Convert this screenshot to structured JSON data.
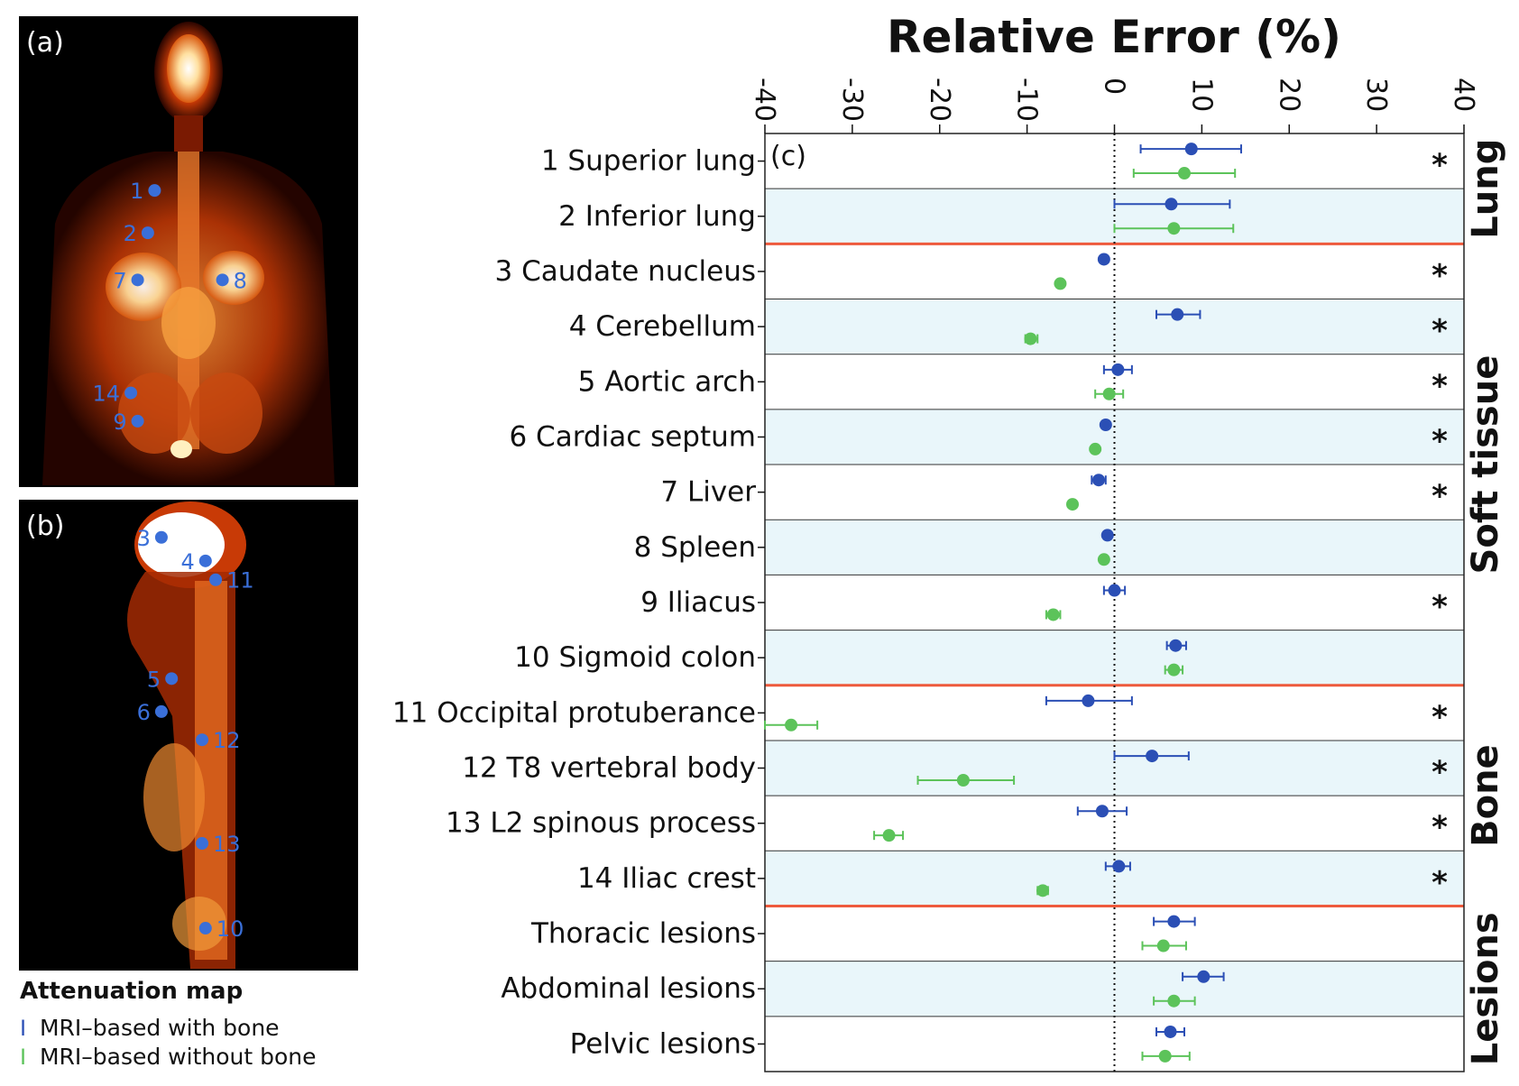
{
  "panels": {
    "a": {
      "label": "(a)",
      "markers": [
        {
          "label": "1",
          "x": 0.4,
          "y": 0.37,
          "side": "left"
        },
        {
          "label": "2",
          "x": 0.38,
          "y": 0.46,
          "side": "left"
        },
        {
          "label": "7",
          "x": 0.35,
          "y": 0.56,
          "side": "left"
        },
        {
          "label": "8",
          "x": 0.6,
          "y": 0.56,
          "side": "right"
        },
        {
          "label": "14",
          "x": 0.33,
          "y": 0.8,
          "side": "left"
        },
        {
          "label": "9",
          "x": 0.35,
          "y": 0.86,
          "side": "left"
        }
      ]
    },
    "b": {
      "label": "(b)",
      "markers": [
        {
          "label": "3",
          "x": 0.42,
          "y": 0.08,
          "side": "left"
        },
        {
          "label": "4",
          "x": 0.55,
          "y": 0.13,
          "side": "left"
        },
        {
          "label": "11",
          "x": 0.58,
          "y": 0.17,
          "side": "right"
        },
        {
          "label": "5",
          "x": 0.45,
          "y": 0.38,
          "side": "left"
        },
        {
          "label": "6",
          "x": 0.42,
          "y": 0.45,
          "side": "left"
        },
        {
          "label": "12",
          "x": 0.54,
          "y": 0.51,
          "side": "right"
        },
        {
          "label": "13",
          "x": 0.54,
          "y": 0.73,
          "side": "right"
        },
        {
          "label": "10",
          "x": 0.55,
          "y": 0.91,
          "side": "right"
        }
      ]
    }
  },
  "legend": {
    "title": "Attenuation map",
    "items": [
      {
        "mark": "I",
        "label": "MRI–based with bone",
        "color": "#2b4fb5"
      },
      {
        "mark": "I",
        "label": "MRI–based without bone",
        "color": "#5cc35a"
      }
    ]
  },
  "colors": {
    "with_bone": "#2b4fb5",
    "without_bone": "#5cc35a",
    "band": "#e9f6fa",
    "separator": "#ee5a3c"
  },
  "chart_data": {
    "type": "scatter",
    "title": "Relative Error (%)",
    "panel_label": "(c)",
    "xlim": [
      -40,
      40
    ],
    "xticks": [
      -40,
      -30,
      -20,
      -10,
      0,
      10,
      20,
      30,
      40
    ],
    "xtick_labels": [
      "-40",
      "-30",
      "-20",
      "-10",
      "0",
      "10",
      "20",
      "30",
      "40"
    ],
    "reference_line_x": 0,
    "categories": [
      "1 Superior lung",
      "2 Inferior lung",
      "3 Caudate nucleus",
      "4 Cerebellum",
      "5 Aortic arch",
      "6 Cardiac septum",
      "7 Liver",
      "8 Spleen",
      "9 Iliacus",
      "10 Sigmoid colon",
      "11 Occipital protuberance",
      "12 T8 vertebral body",
      "13 L2 spinous process",
      "14 Iliac crest",
      "Thoracic lesions",
      "Abdominal lesions",
      "Pelvic lesions"
    ],
    "groups": [
      {
        "name": "Lung",
        "from": 0,
        "to": 1
      },
      {
        "name": "Soft tissue",
        "from": 2,
        "to": 9
      },
      {
        "name": "Bone",
        "from": 10,
        "to": 13
      },
      {
        "name": "Lesions",
        "from": 14,
        "to": 16
      }
    ],
    "significant": [
      true,
      false,
      true,
      true,
      true,
      true,
      true,
      false,
      true,
      false,
      true,
      true,
      true,
      true,
      false,
      false,
      false
    ],
    "significance_marker": "*",
    "series": [
      {
        "name": "MRI–based with bone",
        "mean": [
          8.8,
          6.5,
          -1.2,
          7.2,
          0.4,
          -1.0,
          -1.8,
          -0.8,
          0.0,
          7.0,
          -3.0,
          4.3,
          -1.4,
          0.5,
          6.8,
          10.2,
          6.4
        ],
        "lower": [
          3.0,
          0.0,
          -1.2,
          4.8,
          -1.2,
          -1.0,
          -2.6,
          -0.8,
          -1.2,
          6.0,
          -7.8,
          0.0,
          -4.2,
          -1.0,
          4.5,
          7.8,
          4.8
        ],
        "upper": [
          14.5,
          13.2,
          -1.2,
          9.8,
          2.0,
          -1.0,
          -1.0,
          -0.8,
          1.2,
          8.2,
          2.0,
          8.5,
          1.4,
          1.8,
          9.2,
          12.5,
          8.0
        ]
      },
      {
        "name": "MRI–based without bone",
        "mean": [
          8.0,
          6.8,
          -6.2,
          -9.6,
          -0.6,
          -2.2,
          -4.8,
          -1.2,
          -7.0,
          6.8,
          -37.0,
          -17.3,
          -25.8,
          -8.2,
          5.6,
          6.8,
          5.8
        ],
        "lower": [
          2.2,
          0.0,
          -6.2,
          -10.2,
          -2.2,
          -2.2,
          -4.8,
          -1.2,
          -7.8,
          5.8,
          -40.0,
          -22.5,
          -27.5,
          -8.8,
          3.2,
          4.5,
          3.2
        ],
        "upper": [
          13.8,
          13.6,
          -6.2,
          -8.8,
          1.0,
          -2.2,
          -4.8,
          -1.2,
          -6.2,
          7.8,
          -34.0,
          -11.5,
          -24.2,
          -7.6,
          8.2,
          9.2,
          8.6
        ]
      }
    ]
  }
}
